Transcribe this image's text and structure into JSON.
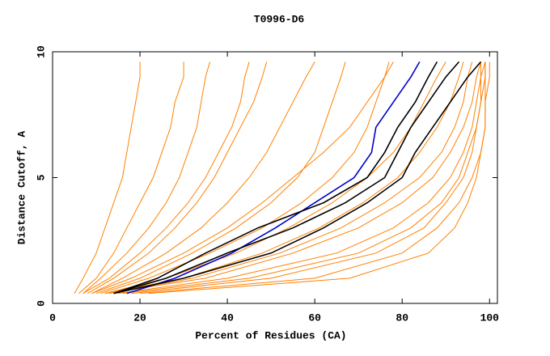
{
  "chart_data": {
    "type": "line",
    "title": "T0996-D6",
    "xlabel": "Percent of Residues (CA)",
    "ylabel": "Distance Cutoff, A",
    "xlim": [
      0,
      101.8
    ],
    "ylim": [
      0,
      10
    ],
    "xticks": [
      0,
      20,
      40,
      60,
      80,
      100
    ],
    "yticks": [
      0,
      5,
      10
    ],
    "series": [
      {
        "color": "#ff8000",
        "x": [
          5,
          7,
          10,
          12,
          14,
          16,
          17,
          18,
          19,
          20,
          20
        ],
        "values": [
          0.4,
          1,
          2,
          3,
          4,
          5,
          6,
          7,
          8,
          9,
          9.6
        ]
      },
      {
        "color": "#ff8000",
        "x": [
          6,
          10,
          14,
          17,
          20,
          23,
          25,
          27,
          28,
          30,
          30
        ],
        "values": [
          0.4,
          1,
          2,
          3,
          4,
          5,
          6,
          7,
          8,
          9,
          9.6
        ]
      },
      {
        "color": "#ff8000",
        "x": [
          7,
          11,
          17,
          22,
          26,
          29,
          31,
          33,
          34,
          35,
          36
        ],
        "values": [
          0.4,
          1,
          2,
          3,
          4,
          5,
          6,
          7,
          8,
          9,
          9.6
        ]
      },
      {
        "color": "#ff8000",
        "x": [
          8,
          14,
          22,
          28,
          33,
          37,
          40,
          43,
          46,
          48,
          49
        ],
        "values": [
          0.4,
          1,
          2,
          3,
          4,
          5,
          6,
          7,
          8,
          9,
          9.6
        ]
      },
      {
        "color": "#ff8000",
        "x": [
          9,
          16,
          26,
          34,
          40,
          45,
          49,
          52,
          55,
          58,
          60
        ],
        "values": [
          0.4,
          1,
          2,
          3,
          4,
          5,
          6,
          7,
          8,
          9,
          9.6
        ]
      },
      {
        "color": "#ff8000",
        "x": [
          10,
          20,
          32,
          42,
          50,
          56,
          60,
          62,
          64,
          66,
          67
        ],
        "values": [
          0.4,
          1,
          2,
          3,
          4,
          5,
          6,
          7,
          8,
          9,
          9.6
        ]
      },
      {
        "color": "#ff8000",
        "x": [
          11,
          22,
          36,
          48,
          57,
          64,
          69,
          72,
          74,
          76,
          77
        ],
        "values": [
          0.4,
          1,
          2,
          3,
          4,
          5,
          6,
          7,
          8,
          9,
          9.6
        ]
      },
      {
        "color": "#ff8000",
        "x": [
          12,
          26,
          42,
          54,
          64,
          72,
          78,
          82,
          85,
          88,
          90
        ],
        "values": [
          0.4,
          1,
          2,
          3,
          4,
          5,
          6,
          7,
          8,
          9,
          9.6
        ]
      },
      {
        "color": "#ff8000",
        "x": [
          12,
          30,
          48,
          61,
          71,
          79,
          84,
          88,
          91,
          93,
          94
        ],
        "values": [
          0.4,
          1,
          2,
          3,
          4,
          5,
          6,
          7,
          8,
          9,
          9.6
        ]
      },
      {
        "color": "#ff8000",
        "x": [
          12,
          35,
          55,
          70,
          80,
          87,
          91,
          94,
          96,
          97,
          98
        ],
        "values": [
          0.4,
          1,
          2,
          3,
          4,
          5,
          6,
          7,
          8,
          9,
          9.6
        ]
      },
      {
        "color": "#ff8000",
        "x": [
          15,
          40,
          65,
          78,
          86,
          91,
          94,
          96,
          97,
          98,
          98
        ],
        "values": [
          0.4,
          1,
          2,
          3,
          4,
          5,
          6,
          7,
          8,
          9,
          9.6
        ]
      },
      {
        "color": "#ff8000",
        "x": [
          18,
          50,
          74,
          85,
          90,
          94,
          96,
          97,
          98,
          99,
          99
        ],
        "values": [
          0.4,
          1,
          2,
          3,
          4,
          5,
          6,
          7,
          8,
          9,
          9.6
        ]
      },
      {
        "color": "#ff8000",
        "x": [
          20,
          60,
          80,
          88,
          93,
          96,
          98,
          99,
          99,
          99,
          99
        ],
        "values": [
          0.4,
          1,
          2,
          3,
          4,
          5,
          6,
          7,
          8,
          9,
          9.6
        ]
      },
      {
        "color": "#ff8000",
        "x": [
          22,
          68,
          86,
          92,
          95,
          97,
          98,
          99,
          99,
          100,
          100
        ],
        "values": [
          0.4,
          1,
          2,
          3,
          4,
          5,
          6,
          7,
          8,
          9,
          9.6
        ]
      },
      {
        "color": "#ff8000",
        "x": [
          16,
          45,
          70,
          82,
          89,
          93,
          95,
          97,
          98,
          98,
          99
        ],
        "values": [
          0.4,
          1,
          2,
          3,
          4,
          5,
          6,
          7,
          8,
          9,
          9.6
        ]
      },
      {
        "color": "#ff8000",
        "x": [
          9,
          18,
          30,
          40,
          48,
          55,
          62,
          68,
          72,
          76,
          78
        ],
        "values": [
          0.4,
          1,
          2,
          3,
          4,
          5,
          6,
          7,
          8,
          9,
          9.6
        ]
      },
      {
        "color": "#ff8000",
        "x": [
          7,
          13,
          20,
          26,
          31,
          35,
          38,
          41,
          43,
          44,
          45
        ],
        "values": [
          0.4,
          1,
          2,
          3,
          4,
          5,
          6,
          7,
          8,
          9,
          9.6
        ]
      },
      {
        "color": "#ff8000",
        "x": [
          13,
          32,
          52,
          66,
          76,
          84,
          89,
          92,
          94,
          95,
          96
        ],
        "values": [
          0.4,
          1,
          2,
          3,
          4,
          5,
          6,
          7,
          8,
          9,
          9.6
        ]
      },
      {
        "color": "#0000cc",
        "x": [
          17,
          28,
          41,
          51,
          60,
          69,
          73,
          74,
          78,
          82,
          84
        ],
        "values": [
          0.4,
          1,
          2,
          3,
          4,
          5,
          6,
          7,
          8,
          9,
          9.6
        ]
      },
      {
        "color": "#000000",
        "x": [
          14,
          24,
          35,
          47,
          62,
          72,
          76,
          79,
          83,
          86,
          88
        ],
        "values": [
          0.4,
          1,
          2,
          3,
          4,
          5,
          6,
          7,
          8,
          9,
          9.6
        ]
      },
      {
        "color": "#000000",
        "x": [
          14,
          26,
          40,
          55,
          67,
          76,
          79,
          82,
          86,
          90,
          93
        ],
        "values": [
          0.4,
          1,
          2,
          3,
          4,
          5,
          6,
          7,
          8,
          9,
          9.6
        ]
      },
      {
        "color": "#000000",
        "x": [
          14,
          30,
          50,
          62,
          72,
          80,
          83,
          87,
          91,
          95,
          98
        ],
        "values": [
          0.4,
          1,
          2,
          3,
          4,
          5,
          6,
          7,
          8,
          9,
          9.6
        ]
      }
    ]
  }
}
